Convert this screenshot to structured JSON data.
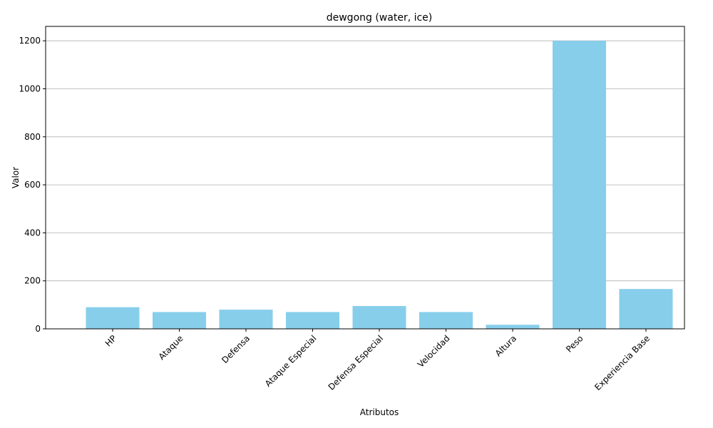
{
  "chart_data": {
    "type": "bar",
    "title": "dewgong (water, ice)",
    "xlabel": "Atributos",
    "ylabel": "Valor",
    "categories": [
      "HP",
      "Ataque",
      "Defensa",
      "Ataque Especial",
      "Defensa Especial",
      "Velocidad",
      "Altura",
      "Peso",
      "Experiencia Base"
    ],
    "values": [
      90,
      70,
      80,
      70,
      95,
      70,
      17,
      1200,
      166
    ],
    "ylim": [
      0,
      1260
    ],
    "yticks": [
      0,
      200,
      400,
      600,
      800,
      1000,
      1200
    ],
    "grid": "y",
    "colors": {
      "bar": "#87ceeb",
      "grid": "#b0b0b0",
      "axis": "#000000"
    }
  }
}
